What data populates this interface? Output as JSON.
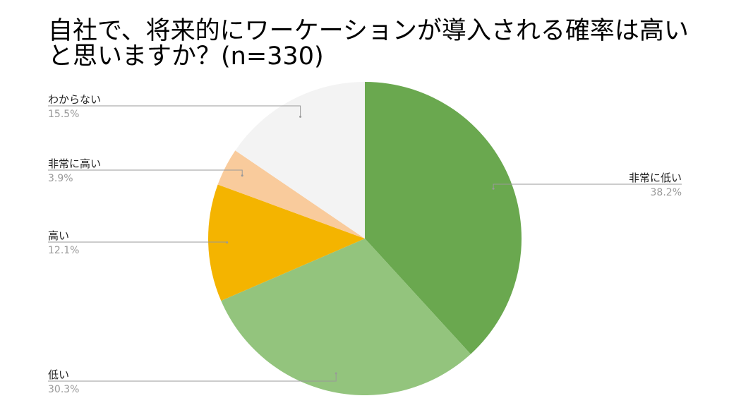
{
  "chart_data": {
    "type": "pie",
    "title": "自社で、将来的にワーケーションが導入される確率は高いと思いますか？(n=330)",
    "categories": [
      "非常に低い",
      "低い",
      "高い",
      "非常に高い",
      "わからない"
    ],
    "values": [
      38.2,
      30.3,
      12.1,
      3.9,
      15.5
    ],
    "value_labels": [
      "38.2%",
      "30.3%",
      "12.1%",
      "3.9%",
      "15.5%"
    ],
    "colors": [
      "#6aa84f",
      "#93c47d",
      "#f4b400",
      "#f9cb9c",
      "#f3f3f3"
    ]
  }
}
